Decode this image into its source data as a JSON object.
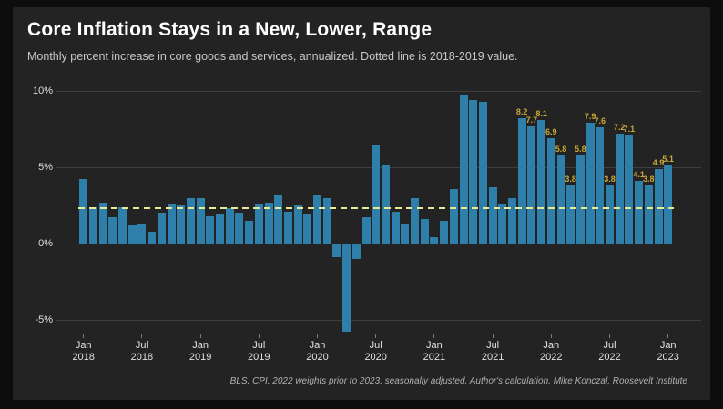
{
  "header": {
    "title": "Core Inflation Stays in a New, Lower, Range",
    "subtitle": "Monthly percent increase in core goods and services, annualized. Dotted line is 2018-2019 value."
  },
  "footer": {
    "source_note": "BLS, CPI, 2022 weights prior to 2023, seasonally adjusted. Author's calculation. Mike Konczal, Roosevelt Institute"
  },
  "chart_data": {
    "type": "bar",
    "title": "Core Inflation Stays in a New, Lower, Range",
    "xlabel": "",
    "ylabel": "Monthly percent increase, annualized",
    "ylim": [
      -6.5,
      10.5
    ],
    "grid": "horizontal-faint",
    "legend": "none",
    "categories": [
      "Jan 2018",
      "Feb 2018",
      "Mar 2018",
      "Apr 2018",
      "May 2018",
      "Jun 2018",
      "Jul 2018",
      "Aug 2018",
      "Sep 2018",
      "Oct 2018",
      "Nov 2018",
      "Dec 2018",
      "Jan 2019",
      "Feb 2019",
      "Mar 2019",
      "Apr 2019",
      "May 2019",
      "Jun 2019",
      "Jul 2019",
      "Aug 2019",
      "Sep 2019",
      "Oct 2019",
      "Nov 2019",
      "Dec 2019",
      "Jan 2020",
      "Feb 2020",
      "Mar 2020",
      "Apr 2020",
      "May 2020",
      "Jun 2020",
      "Jul 2020",
      "Aug 2020",
      "Sep 2020",
      "Oct 2020",
      "Nov 2020",
      "Dec 2020",
      "Jan 2021",
      "Feb 2021",
      "Mar 2021",
      "Apr 2021",
      "May 2021",
      "Jun 2021",
      "Jul 2021",
      "Aug 2021",
      "Sep 2021",
      "Oct 2021",
      "Nov 2021",
      "Dec 2021",
      "Jan 2022",
      "Feb 2022",
      "Mar 2022",
      "Apr 2022",
      "May 2022",
      "Jun 2022",
      "Jul 2022",
      "Aug 2022",
      "Sep 2022",
      "Oct 2022",
      "Nov 2022",
      "Dec 2022",
      "Jan 2023"
    ],
    "values": [
      4.2,
      2.4,
      2.7,
      1.7,
      2.4,
      1.2,
      1.3,
      0.8,
      2.0,
      2.6,
      2.5,
      3.0,
      3.0,
      1.8,
      1.9,
      2.3,
      2.0,
      1.5,
      2.6,
      2.7,
      3.2,
      2.1,
      2.5,
      1.9,
      3.2,
      3.0,
      -0.9,
      -5.8,
      -1.0,
      1.7,
      6.5,
      5.1,
      2.1,
      1.3,
      3.0,
      1.6,
      0.4,
      1.5,
      3.6,
      9.7,
      9.4,
      9.3,
      3.7,
      2.6,
      3.0,
      8.2,
      7.7,
      8.1,
      6.9,
      5.8,
      3.8,
      5.8,
      7.9,
      7.6,
      3.8,
      7.2,
      7.1,
      4.1,
      3.8,
      4.9,
      5.1
    ],
    "labeled_from_index": 45,
    "value_labels": [
      "8.2",
      "7.7",
      "8.1",
      "6.9",
      "5.8",
      "3.8",
      "5.8",
      "7.9",
      "7.6",
      "3.8",
      "7.2",
      "7.1",
      "4.1",
      "3.8",
      "4.9",
      "5.1"
    ],
    "baseline": {
      "value": 2.3,
      "meaning": "2018-2019 value",
      "style": "dashed"
    },
    "y_ticks": [
      {
        "value": 10,
        "label": "10%"
      },
      {
        "value": 5,
        "label": "5%"
      },
      {
        "value": 0,
        "label": "0%"
      },
      {
        "value": -5,
        "label": "-5%"
      }
    ],
    "x_ticks": [
      {
        "index": 0,
        "line1": "Jan",
        "line2": "2018"
      },
      {
        "index": 6,
        "line1": "Jul",
        "line2": "2018"
      },
      {
        "index": 12,
        "line1": "Jan",
        "line2": "2019"
      },
      {
        "index": 18,
        "line1": "Jul",
        "line2": "2019"
      },
      {
        "index": 24,
        "line1": "Jan",
        "line2": "2020"
      },
      {
        "index": 30,
        "line1": "Jul",
        "line2": "2020"
      },
      {
        "index": 36,
        "line1": "Jan",
        "line2": "2021"
      },
      {
        "index": 42,
        "line1": "Jul",
        "line2": "2021"
      },
      {
        "index": 48,
        "line1": "Jan",
        "line2": "2022"
      },
      {
        "index": 54,
        "line1": "Jul",
        "line2": "2022"
      },
      {
        "index": 60,
        "line1": "Jan",
        "line2": "2023"
      }
    ],
    "colors": {
      "bar": "#2e80aa",
      "baseline": "#e9ec95",
      "value_label": "#c9a937",
      "grid": "#3d3d3d",
      "panel_bg": "#232323",
      "page_bg": "#0d0d0d",
      "title": "#ffffff",
      "subtitle": "#c9c9c9",
      "axis_text": "#dcdcdc",
      "footer_text": "#b0b0b0"
    }
  }
}
